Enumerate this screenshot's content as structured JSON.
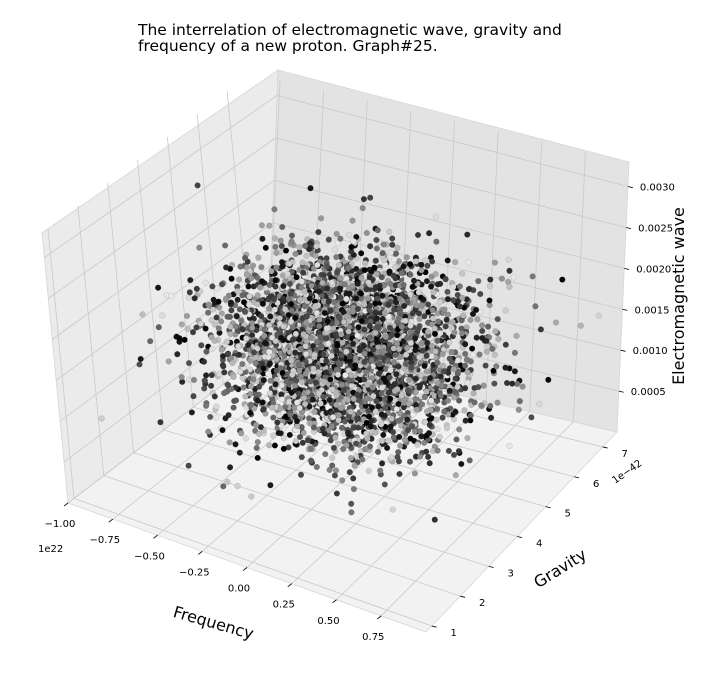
{
  "chart_data": {
    "type": "scatter",
    "title": "The interrelation of electromagnetic wave, gravity and\nfrequency of a new proton. Graph#25.",
    "xlabel": "Frequency",
    "ylabel": "Gravity",
    "zlabel": "Electromagnetic wave",
    "x_ticks": [
      "−1.00",
      "−0.75",
      "−0.50",
      "−0.25",
      "0.00",
      "0.25",
      "0.50",
      "0.75"
    ],
    "y_ticks": [
      "1",
      "2",
      "3",
      "4",
      "5",
      "6",
      "7"
    ],
    "z_ticks": [
      "0.0005",
      "0.0010",
      "0.0015",
      "0.0020",
      "0.0025",
      "0.0030"
    ],
    "x_offset": "1e22",
    "y_offset": "1e−42",
    "xlim": [
      -1e+22,
      1e+22
    ],
    "ylim": [
      8e-43,
      7.5e-42
    ],
    "zlim": [
      0.0,
      0.0033
    ],
    "grid": true,
    "legend": "none",
    "point_colormap": "greys",
    "approx_point_count": 4000,
    "distribution": "normal, centered near x=0, y=4.2e-42, z=0.0017"
  }
}
